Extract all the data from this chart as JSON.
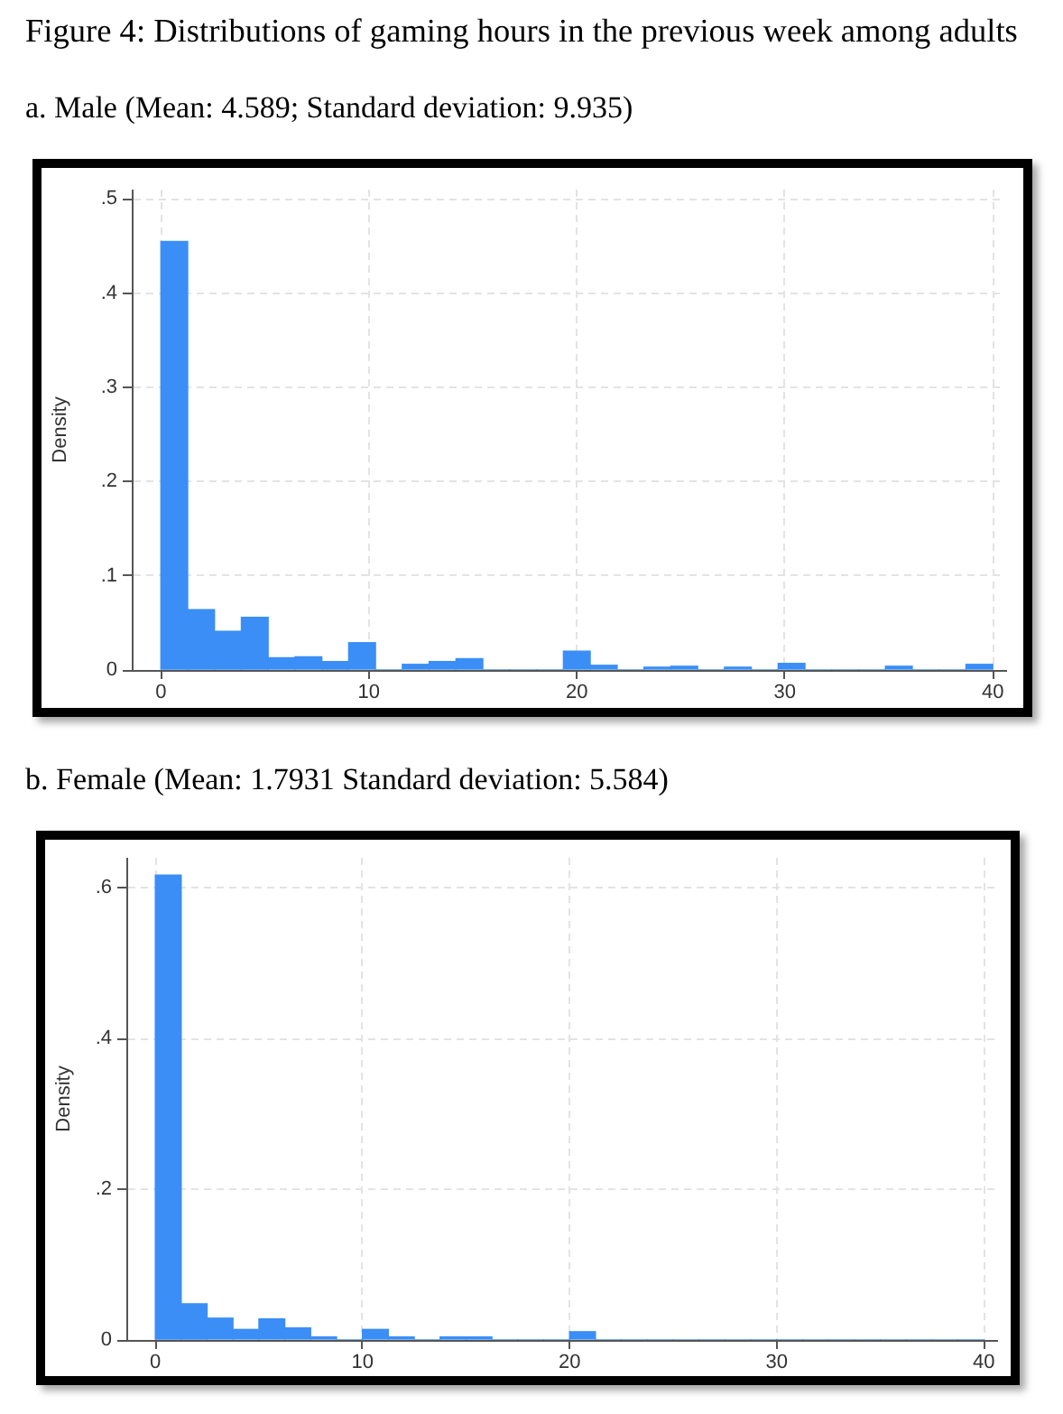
{
  "chart_data": [
    {
      "type": "histogram",
      "title": "Figure 4: Distributions of gaming hours in the previous week among adults",
      "subtitle": "a. Male (Mean: 4.589; Standard deviation: 9.935)",
      "ylabel": "Density",
      "bins": [
        0,
        1.29,
        2.58,
        3.87,
        5.16,
        6.45,
        7.74,
        9.03,
        10.32,
        11.61,
        12.9,
        14.19,
        15.48,
        16.77,
        18.06,
        19.35,
        20.65,
        21.94,
        23.23,
        24.52,
        25.81,
        27.1,
        28.39,
        29.68,
        30.97,
        32.26,
        33.55,
        34.84,
        36.13,
        37.42,
        38.71,
        40
      ],
      "values": [
        0.455,
        0.064,
        0.041,
        0.056,
        0.013,
        0.014,
        0.009,
        0.029,
        0,
        0.006,
        0.009,
        0.012,
        0,
        0,
        0,
        0.02,
        0.005,
        0,
        0.003,
        0.004,
        0,
        0.003,
        0,
        0.007,
        0,
        0,
        0,
        0.004,
        0,
        0,
        0.006
      ],
      "color": "#3a8ef6",
      "xlim": [
        -1.4,
        40.6
      ],
      "xticks": [
        0,
        10,
        20,
        30,
        40
      ],
      "ylim": [
        0,
        0.51
      ],
      "yticks": [
        0,
        {
          "value": 0.1,
          "label": ".1"
        },
        {
          "value": 0.2,
          "label": ".2"
        },
        {
          "value": 0.3,
          "label": ".3"
        },
        {
          "value": 0.4,
          "label": ".4"
        },
        {
          "value": 0.5,
          "label": ".5"
        }
      ],
      "grid": true
    },
    {
      "type": "histogram",
      "subtitle": "b. Female (Mean: 1.7931 Standard deviation: 5.584)",
      "ylabel": "Density",
      "bins": [
        0,
        1.25,
        2.5,
        3.75,
        5,
        6.25,
        7.5,
        8.75,
        10,
        11.25,
        12.5,
        13.75,
        15,
        16.25,
        17.5,
        18.75,
        20,
        21.25,
        22.5,
        23.75,
        25,
        26.25,
        27.5,
        28.75,
        30,
        31.25,
        32.5,
        33.75,
        35,
        36.25,
        37.5,
        38.75,
        40
      ],
      "values": [
        0.617,
        0.048,
        0.029,
        0.014,
        0.028,
        0.016,
        0.004,
        0,
        0.014,
        0.004,
        0,
        0.004,
        0.004,
        0,
        0,
        0,
        0.011,
        0,
        0,
        0,
        0,
        0,
        0,
        0,
        0,
        0,
        0,
        0,
        0,
        0,
        0,
        0
      ],
      "color": "#3a8ef6",
      "xlim": [
        -1.4,
        40.6
      ],
      "xticks": [
        0,
        10,
        20,
        30,
        40
      ],
      "ylim": [
        0,
        0.64
      ],
      "yticks": [
        0,
        {
          "value": 0.2,
          "label": ".2"
        },
        {
          "value": 0.4,
          "label": ".4"
        },
        {
          "value": 0.6,
          "label": ".6"
        }
      ],
      "grid": true
    }
  ]
}
